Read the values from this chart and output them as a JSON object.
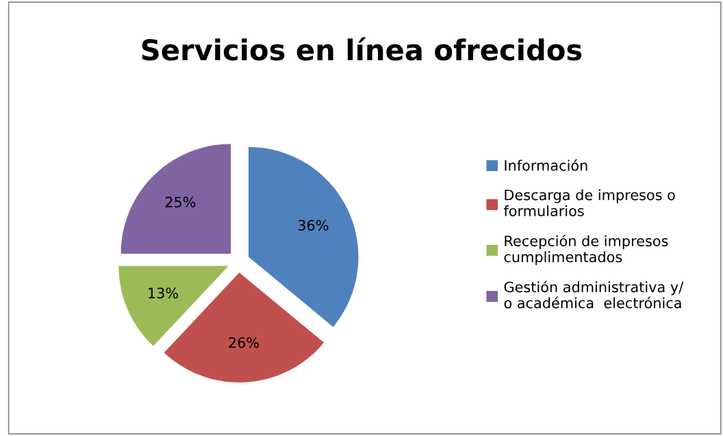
{
  "chart_data": {
    "type": "pie",
    "title": "Servicios en línea ofrecidos",
    "categories": [
      "Información",
      "Descarga de impresos o formularios",
      "Recepción de impresos cumplimentados",
      "Gestión administrativa y/ o académica  electrónica"
    ],
    "values": [
      36,
      26,
      13,
      25
    ],
    "value_labels": [
      "36%",
      "26%",
      "13%",
      "25%"
    ],
    "colors": [
      "#4f81bd",
      "#c0504d",
      "#9bbb59",
      "#8064a2"
    ],
    "legend": "right"
  }
}
